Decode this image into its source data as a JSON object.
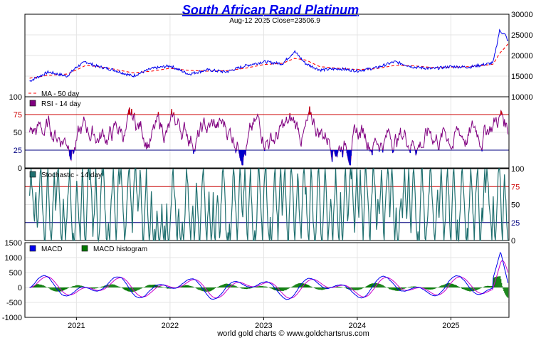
{
  "title": "South African Rand Platinum",
  "subtitle": "Aug-12  2025   Close=23506.9",
  "footer": "world gold charts © www.goldchartsrus.com",
  "colors": {
    "price": "#0000ee",
    "ma": "#ff0000",
    "rsi": "#800080",
    "rsi_overbought": "#cc0000",
    "rsi_oversold": "#0000cc",
    "stoch": "#1f6f6f",
    "macd": "#0000ee",
    "macd_signal": "#cc00cc",
    "macd_hist": "#007700",
    "grid": "#e4e4e4",
    "level_red": "#cc0000",
    "level_blue": "#000080"
  },
  "chart_data": [
    {
      "type": "line",
      "panel": "price",
      "title": "South African Rand Platinum",
      "ylim": [
        10000,
        30000
      ],
      "yticks": [
        "30000",
        "25000",
        "20000",
        "15000",
        "10000"
      ],
      "yticks_values": [
        30000,
        25000,
        20000,
        15000,
        10000
      ],
      "x": [
        2020.5,
        2020.7,
        2020.9,
        2021.0,
        2021.1,
        2021.2,
        2021.4,
        2021.6,
        2021.8,
        2022.0,
        2022.2,
        2022.4,
        2022.6,
        2022.8,
        2023.0,
        2023.2,
        2023.33,
        2023.45,
        2023.6,
        2023.8,
        2024.0,
        2024.2,
        2024.4,
        2024.6,
        2024.8,
        2025.0,
        2025.2,
        2025.35,
        2025.45,
        2025.52,
        2025.58,
        2025.61
      ],
      "series": [
        {
          "name": "Price",
          "values": [
            13800,
            16000,
            15000,
            17200,
            18500,
            17500,
            16500,
            15000,
            16800,
            17500,
            15500,
            16500,
            16000,
            17500,
            18500,
            18000,
            21000,
            18000,
            16500,
            16800,
            16300,
            17000,
            18500,
            17200,
            16800,
            17300,
            17200,
            17800,
            18200,
            26000,
            25000,
            23506.9
          ]
        },
        {
          "name": "MA - 50 day",
          "values": [
            14500,
            15200,
            15500,
            16500,
            17600,
            17400,
            16700,
            15800,
            16200,
            16900,
            16400,
            16200,
            16300,
            16900,
            17800,
            18100,
            19300,
            18900,
            17300,
            16900,
            16600,
            16800,
            17600,
            17500,
            17100,
            17200,
            17300,
            17600,
            17900,
            20500,
            22000,
            22800
          ]
        }
      ]
    },
    {
      "type": "line",
      "panel": "rsi",
      "ylim": [
        0,
        100
      ],
      "yticks": [
        "100",
        "75",
        "50",
        "25",
        "0"
      ],
      "yticks_values": [
        100,
        75,
        50,
        25,
        0
      ],
      "levels": [
        75,
        25
      ],
      "series": [
        {
          "name": "RSI - 14 day"
        }
      ]
    },
    {
      "type": "line",
      "panel": "stochastic",
      "ylim": [
        0,
        100
      ],
      "yticks": [
        "100",
        "75",
        "50",
        "25",
        "0"
      ],
      "yticks_values": [
        100,
        75,
        50,
        25,
        0
      ],
      "levels": [
        75,
        25
      ],
      "series": [
        {
          "name": "Stochastic - 14 day"
        }
      ]
    },
    {
      "type": "line",
      "panel": "macd",
      "ylim": [
        -1000,
        1500
      ],
      "yticks": [
        "1500",
        "1000",
        "500",
        "0",
        "-500",
        "-1000"
      ],
      "yticks_values": [
        1500,
        1000,
        500,
        0,
        -500,
        -1000
      ],
      "series": [
        {
          "name": "MACD"
        },
        {
          "name": "MACD histogram"
        }
      ]
    }
  ],
  "xaxis": {
    "labels": [
      "2021",
      "2022",
      "2023",
      "2024",
      "2025"
    ],
    "values": [
      2021.0,
      2022.0,
      2023.0,
      2024.0,
      2025.0
    ],
    "xlim": [
      2020.45,
      2025.62
    ]
  }
}
